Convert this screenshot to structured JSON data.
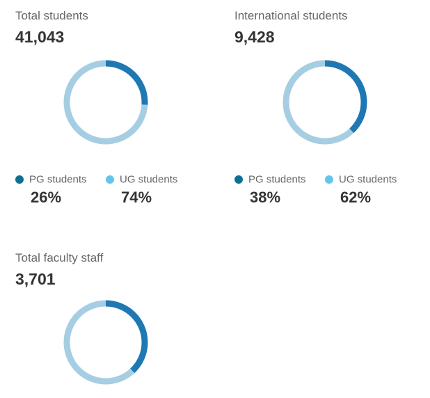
{
  "colors": {
    "pg": "#1f78b4",
    "ug": "#a6cee3",
    "pg_dot": "#0f6f93",
    "ug_dot": "#63c5ea"
  },
  "blocks": [
    {
      "title": "Total students",
      "total": "41,043",
      "pg_label": "PG students",
      "pg_pct": "26%",
      "ug_label": "UG students",
      "ug_pct": "74%"
    },
    {
      "title": "International students",
      "total": "9,428",
      "pg_label": "PG students",
      "pg_pct": "38%",
      "ug_label": "UG students",
      "ug_pct": "62%"
    },
    {
      "title": "Total faculty staff",
      "total": "3,701"
    }
  ],
  "chart_data": [
    {
      "type": "pie",
      "title": "Total students",
      "categories": [
        "PG students",
        "UG students"
      ],
      "values": [
        26,
        74
      ]
    },
    {
      "type": "pie",
      "title": "International students",
      "categories": [
        "PG students",
        "UG students"
      ],
      "values": [
        38,
        62
      ]
    },
    {
      "type": "pie",
      "title": "Total faculty staff",
      "categories": [
        "",
        ""
      ],
      "values": [
        38,
        62
      ]
    }
  ]
}
